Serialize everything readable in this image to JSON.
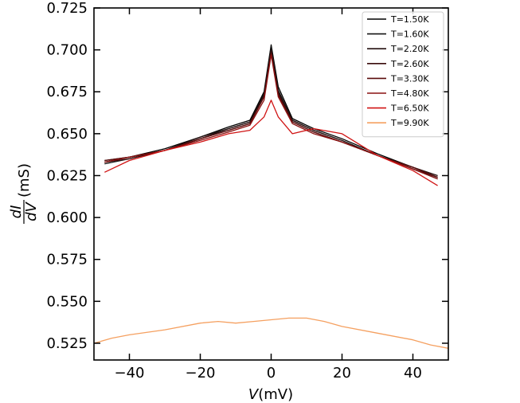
{
  "chart_data": {
    "type": "line",
    "xlabel_var": "V",
    "xlabel_unit": "(mV)",
    "ylabel_num": "dI",
    "ylabel_den": "dV",
    "ylabel_unit": "(mS)",
    "xlim": [
      -50,
      50
    ],
    "ylim": [
      0.515,
      0.725
    ],
    "xticks": [
      -40,
      -20,
      0,
      20,
      40
    ],
    "xtick_labels": [
      "−40",
      "−20",
      "0",
      "20",
      "40"
    ],
    "yticks": [
      0.525,
      0.55,
      0.575,
      0.6,
      0.625,
      0.65,
      0.675,
      0.7,
      0.725
    ],
    "ytick_labels": [
      "0.525",
      "0.550",
      "0.575",
      "0.600",
      "0.625",
      "0.650",
      "0.675",
      "0.700",
      "0.725"
    ],
    "legend_position": "top-right",
    "grid": false,
    "series": [
      {
        "name": "T=1.50K",
        "color": "#000000",
        "x": [
          -47,
          -40,
          -30,
          -20,
          -12,
          -6,
          -2,
          0,
          2,
          6,
          12,
          20,
          30,
          40,
          47
        ],
        "y": [
          0.633,
          0.636,
          0.641,
          0.648,
          0.654,
          0.658,
          0.675,
          0.703,
          0.678,
          0.659,
          0.653,
          0.647,
          0.638,
          0.63,
          0.624
        ]
      },
      {
        "name": "T=1.60K",
        "color": "#141414",
        "x": [
          -47,
          -40,
          -30,
          -20,
          -12,
          -6,
          -2,
          0,
          2,
          6,
          12,
          20,
          30,
          40,
          47
        ],
        "y": [
          0.632,
          0.635,
          0.64,
          0.647,
          0.653,
          0.657,
          0.674,
          0.702,
          0.676,
          0.658,
          0.652,
          0.646,
          0.637,
          0.629,
          0.623
        ]
      },
      {
        "name": "T=2.20K",
        "color": "#241010",
        "x": [
          -47,
          -40,
          -30,
          -20,
          -12,
          -6,
          -2,
          0,
          2,
          6,
          12,
          20,
          30,
          40,
          47
        ],
        "y": [
          0.634,
          0.636,
          0.64,
          0.648,
          0.653,
          0.657,
          0.673,
          0.7,
          0.675,
          0.658,
          0.652,
          0.646,
          0.637,
          0.63,
          0.625
        ]
      },
      {
        "name": "T=2.60K",
        "color": "#3a0c0c",
        "x": [
          -47,
          -40,
          -30,
          -20,
          -12,
          -6,
          -2,
          0,
          2,
          6,
          12,
          20,
          30,
          40,
          47
        ],
        "y": [
          0.633,
          0.635,
          0.64,
          0.647,
          0.652,
          0.656,
          0.672,
          0.699,
          0.674,
          0.657,
          0.651,
          0.645,
          0.637,
          0.629,
          0.624
        ]
      },
      {
        "name": "T=3.30K",
        "color": "#5a0c0c",
        "x": [
          -47,
          -40,
          -30,
          -20,
          -12,
          -6,
          -2,
          0,
          2,
          6,
          12,
          20,
          30,
          40,
          47
        ],
        "y": [
          0.634,
          0.636,
          0.64,
          0.647,
          0.652,
          0.656,
          0.672,
          0.698,
          0.673,
          0.657,
          0.651,
          0.645,
          0.637,
          0.63,
          0.624
        ]
      },
      {
        "name": "T=4.80K",
        "color": "#8a1010",
        "x": [
          -47,
          -40,
          -30,
          -20,
          -12,
          -6,
          -2,
          0,
          2,
          6,
          12,
          20,
          30,
          40,
          47
        ],
        "y": [
          0.633,
          0.636,
          0.64,
          0.646,
          0.651,
          0.655,
          0.67,
          0.697,
          0.672,
          0.656,
          0.65,
          0.645,
          0.637,
          0.629,
          0.623
        ]
      },
      {
        "name": "T=6.50K",
        "color": "#d01414",
        "x": [
          -47,
          -40,
          -30,
          -20,
          -12,
          -6,
          -2,
          0,
          2,
          6,
          12,
          20,
          30,
          40,
          47
        ],
        "y": [
          0.627,
          0.634,
          0.64,
          0.645,
          0.65,
          0.652,
          0.66,
          0.67,
          0.66,
          0.65,
          0.653,
          0.65,
          0.637,
          0.628,
          0.619
        ]
      },
      {
        "name": "T=9.90K",
        "color": "#f5a060",
        "x": [
          -50,
          -45,
          -40,
          -30,
          -20,
          -15,
          -10,
          -5,
          0,
          5,
          10,
          15,
          20,
          30,
          40,
          45,
          50
        ],
        "y": [
          0.525,
          0.528,
          0.53,
          0.533,
          0.537,
          0.538,
          0.537,
          0.538,
          0.539,
          0.54,
          0.54,
          0.538,
          0.535,
          0.531,
          0.527,
          0.524,
          0.522
        ]
      }
    ]
  }
}
